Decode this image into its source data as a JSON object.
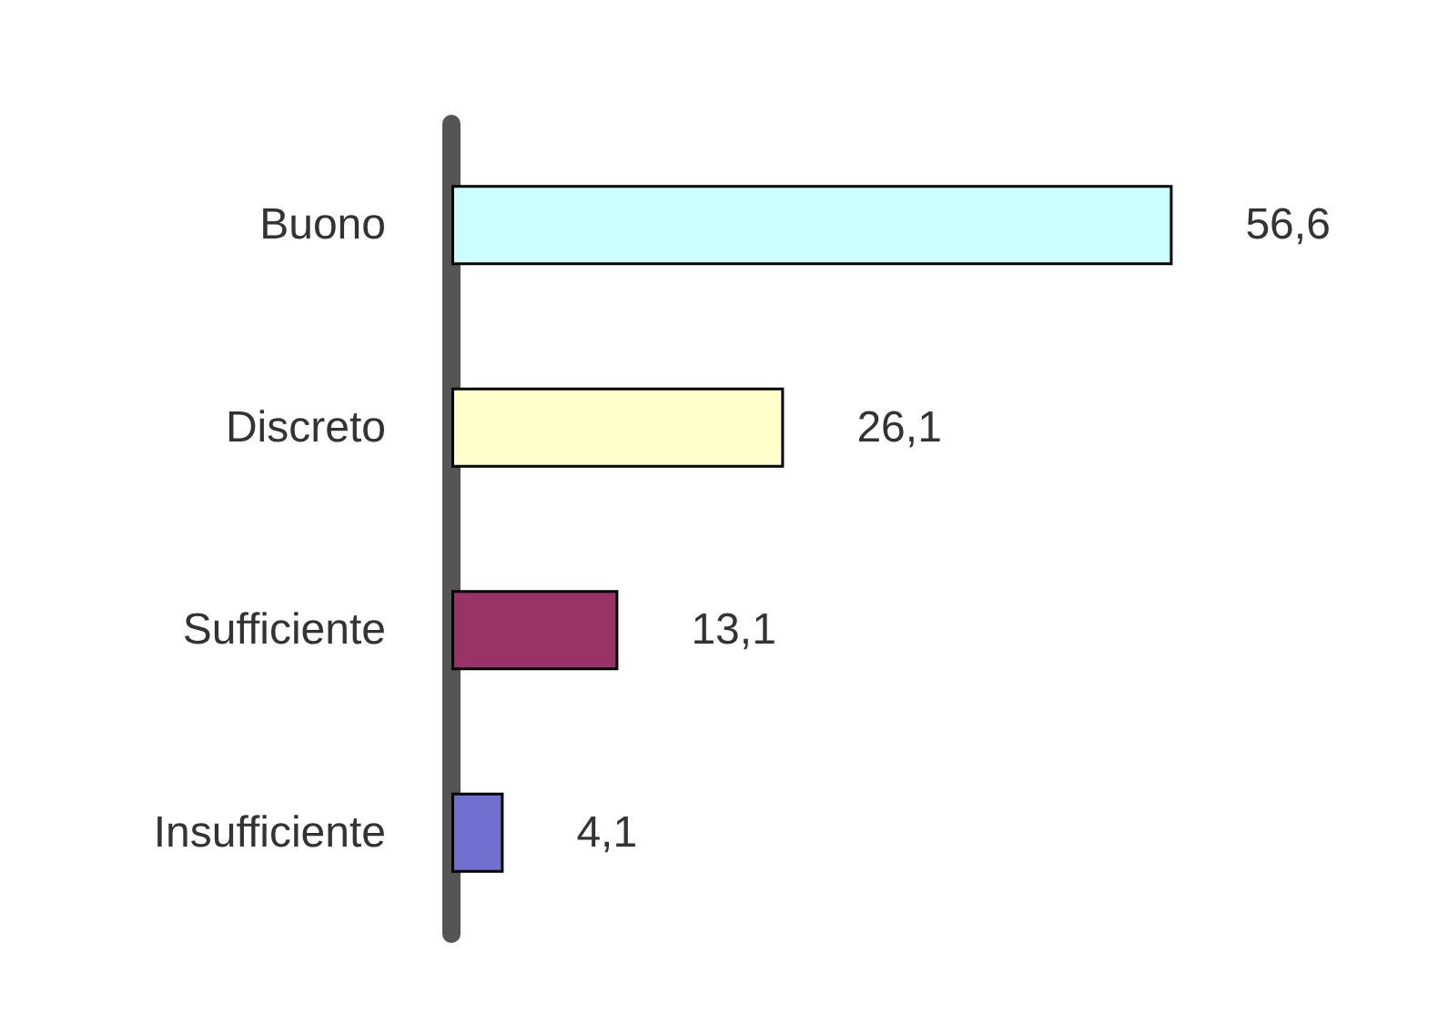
{
  "chart_data": {
    "type": "bar",
    "orientation": "horizontal",
    "categories": [
      "Buono",
      "Discreto",
      "Sufficiente",
      "Insufficiente"
    ],
    "values": [
      56.6,
      26.1,
      13.1,
      4.1
    ],
    "colors": [
      "#ccffff",
      "#ffffcc",
      "#993366",
      "#7070d0"
    ],
    "value_labels": [
      "56,6",
      "26,1",
      "13,1",
      "4,1"
    ],
    "tick_labels": "y"
  }
}
